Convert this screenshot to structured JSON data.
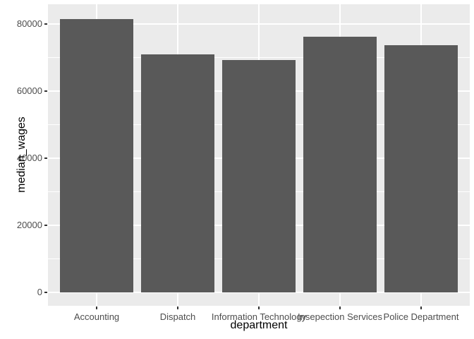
{
  "chart_data": {
    "type": "bar",
    "title": "",
    "xlabel": "department",
    "ylabel": "median_wages",
    "categories": [
      "Accounting",
      "Dispatch",
      "Information Technology",
      "Insepection Services",
      "Police Department"
    ],
    "values": [
      81500,
      71000,
      69300,
      76300,
      73700
    ],
    "yticks": [
      0,
      20000,
      40000,
      60000,
      80000
    ],
    "ytick_labels": [
      "0",
      "20000",
      "40000",
      "60000",
      "80000"
    ],
    "ylim": [
      -4090,
      85890
    ],
    "bar_width_fraction": 0.9,
    "grid": "horizontal major+minor, vertical major at category centers",
    "legend": "none",
    "style": "ggplot2-gray-theme",
    "colors": {
      "bar_fill": "#595959",
      "panel_background": "#EBEBEB",
      "gridline": "#FFFFFF",
      "axis_text": "#4D4D4D",
      "axis_title": "#000000",
      "tick_mark": "#333333",
      "page_background": "#FFFFFF"
    }
  }
}
